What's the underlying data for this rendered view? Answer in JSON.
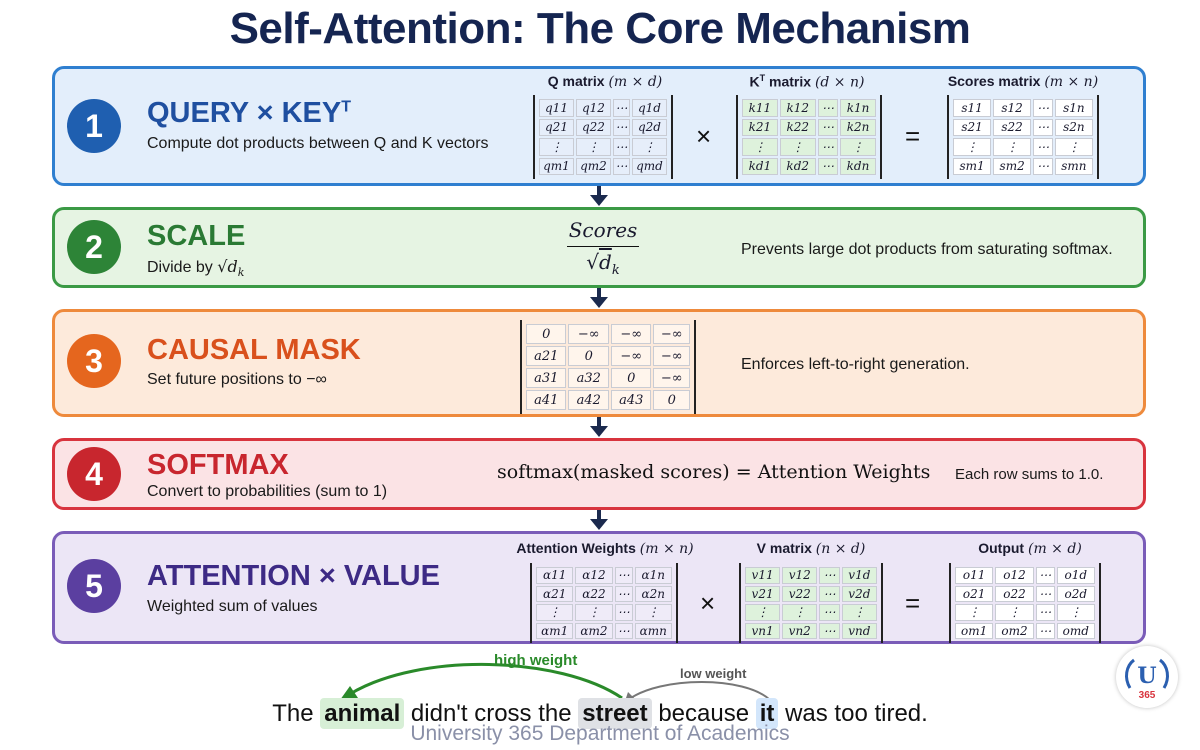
{
  "title": "Self-Attention: The Core Mechanism",
  "steps": [
    {
      "number": "1",
      "title": "QUERY × KEY",
      "title_sup": "T",
      "description": "Compute dot products between Q and K vectors"
    },
    {
      "number": "2",
      "title": "SCALE",
      "description_prefix": "Divide by ",
      "description_math": "√d",
      "description_sub": "k",
      "note": "Prevents large dot products from saturating softmax."
    },
    {
      "number": "3",
      "title": "CAUSAL MASK",
      "description": "Set future positions to −∞",
      "note": "Enforces left-to-right generation."
    },
    {
      "number": "4",
      "title": "SOFTMAX",
      "description": "Convert to probabilities (sum to 1)",
      "formula": "softmax(masked scores) = Attention Weights",
      "note": "Each row sums to 1.0."
    },
    {
      "number": "5",
      "title": "ATTENTION × VALUE",
      "description": "Weighted sum of values"
    }
  ],
  "matrices": {
    "q": {
      "label": "Q matrix",
      "dims": "(m × d)",
      "rows": [
        [
          "q11",
          "q12",
          "⋯",
          "q1d"
        ],
        [
          "q21",
          "q22",
          "⋯",
          "q2d"
        ],
        [
          "⋮",
          "⋮",
          "⋯",
          "⋮"
        ],
        [
          "qm1",
          "qm2",
          "⋯",
          "qmd"
        ]
      ]
    },
    "kt": {
      "label": "K",
      "label_sup": "T",
      "label_rest": " matrix",
      "dims": "(d × n)",
      "rows": [
        [
          "k11",
          "k12",
          "⋯",
          "k1n"
        ],
        [
          "k21",
          "k22",
          "⋯",
          "k2n"
        ],
        [
          "⋮",
          "⋮",
          "⋯",
          "⋮"
        ],
        [
          "kd1",
          "kd2",
          "⋯",
          "kdn"
        ]
      ]
    },
    "scores": {
      "label": "Scores matrix",
      "dims": "(m × n)",
      "rows": [
        [
          "s11",
          "s12",
          "⋯",
          "s1n"
        ],
        [
          "s21",
          "s22",
          "⋯",
          "s2n"
        ],
        [
          "⋮",
          "⋮",
          "⋯",
          "⋮"
        ],
        [
          "sm1",
          "sm2",
          "⋯",
          "smn"
        ]
      ]
    },
    "mask": {
      "rows": [
        [
          "0",
          "−∞",
          "−∞",
          "−∞"
        ],
        [
          "a21",
          "0",
          "−∞",
          "−∞"
        ],
        [
          "a31",
          "a32",
          "0",
          "−∞"
        ],
        [
          "a41",
          "a42",
          "a43",
          "0"
        ]
      ]
    },
    "attn": {
      "label": "Attention Weights",
      "dims": "(m × n)",
      "rows": [
        [
          "α11",
          "α12",
          "⋯",
          "α1n"
        ],
        [
          "α21",
          "α22",
          "⋯",
          "α2n"
        ],
        [
          "⋮",
          "⋮",
          "⋯",
          "⋮"
        ],
        [
          "αm1",
          "αm2",
          "⋯",
          "αmn"
        ]
      ]
    },
    "v": {
      "label": "V matrix",
      "dims": "(n × d)",
      "rows": [
        [
          "v11",
          "v12",
          "⋯",
          "v1d"
        ],
        [
          "v21",
          "v22",
          "⋯",
          "v2d"
        ],
        [
          "⋮",
          "⋮",
          "⋯",
          "⋮"
        ],
        [
          "vn1",
          "vn2",
          "⋯",
          "vnd"
        ]
      ]
    },
    "out": {
      "label": "Output",
      "dims": "(m × d)",
      "rows": [
        [
          "o11",
          "o12",
          "⋯",
          "o1d"
        ],
        [
          "o21",
          "o22",
          "⋯",
          "o2d"
        ],
        [
          "⋮",
          "⋮",
          "⋯",
          "⋮"
        ],
        [
          "om1",
          "om2",
          "⋯",
          "omd"
        ]
      ]
    }
  },
  "operators": {
    "times": "×",
    "equals": "="
  },
  "scale_fraction": {
    "numerator": "Scores",
    "denominator": "d",
    "denominator_sub": "k"
  },
  "example": {
    "words": [
      "The",
      "animal",
      "didn't cross the",
      "street",
      "because",
      "it",
      "was too tired."
    ],
    "high_weight_label": "high weight",
    "low_weight_label": "low weight"
  },
  "footer": "University 365 Department of Academics",
  "logo": {
    "letter": "U",
    "number": "365"
  },
  "colors": {
    "query": "#2f7fd0",
    "scale": "#3b9a45",
    "mask": "#ee8a3c",
    "softmax": "#d8343e",
    "value": "#7a5cb8",
    "title": "#152551",
    "high_weight": "#2a8a2a",
    "low_weight": "#666666"
  }
}
